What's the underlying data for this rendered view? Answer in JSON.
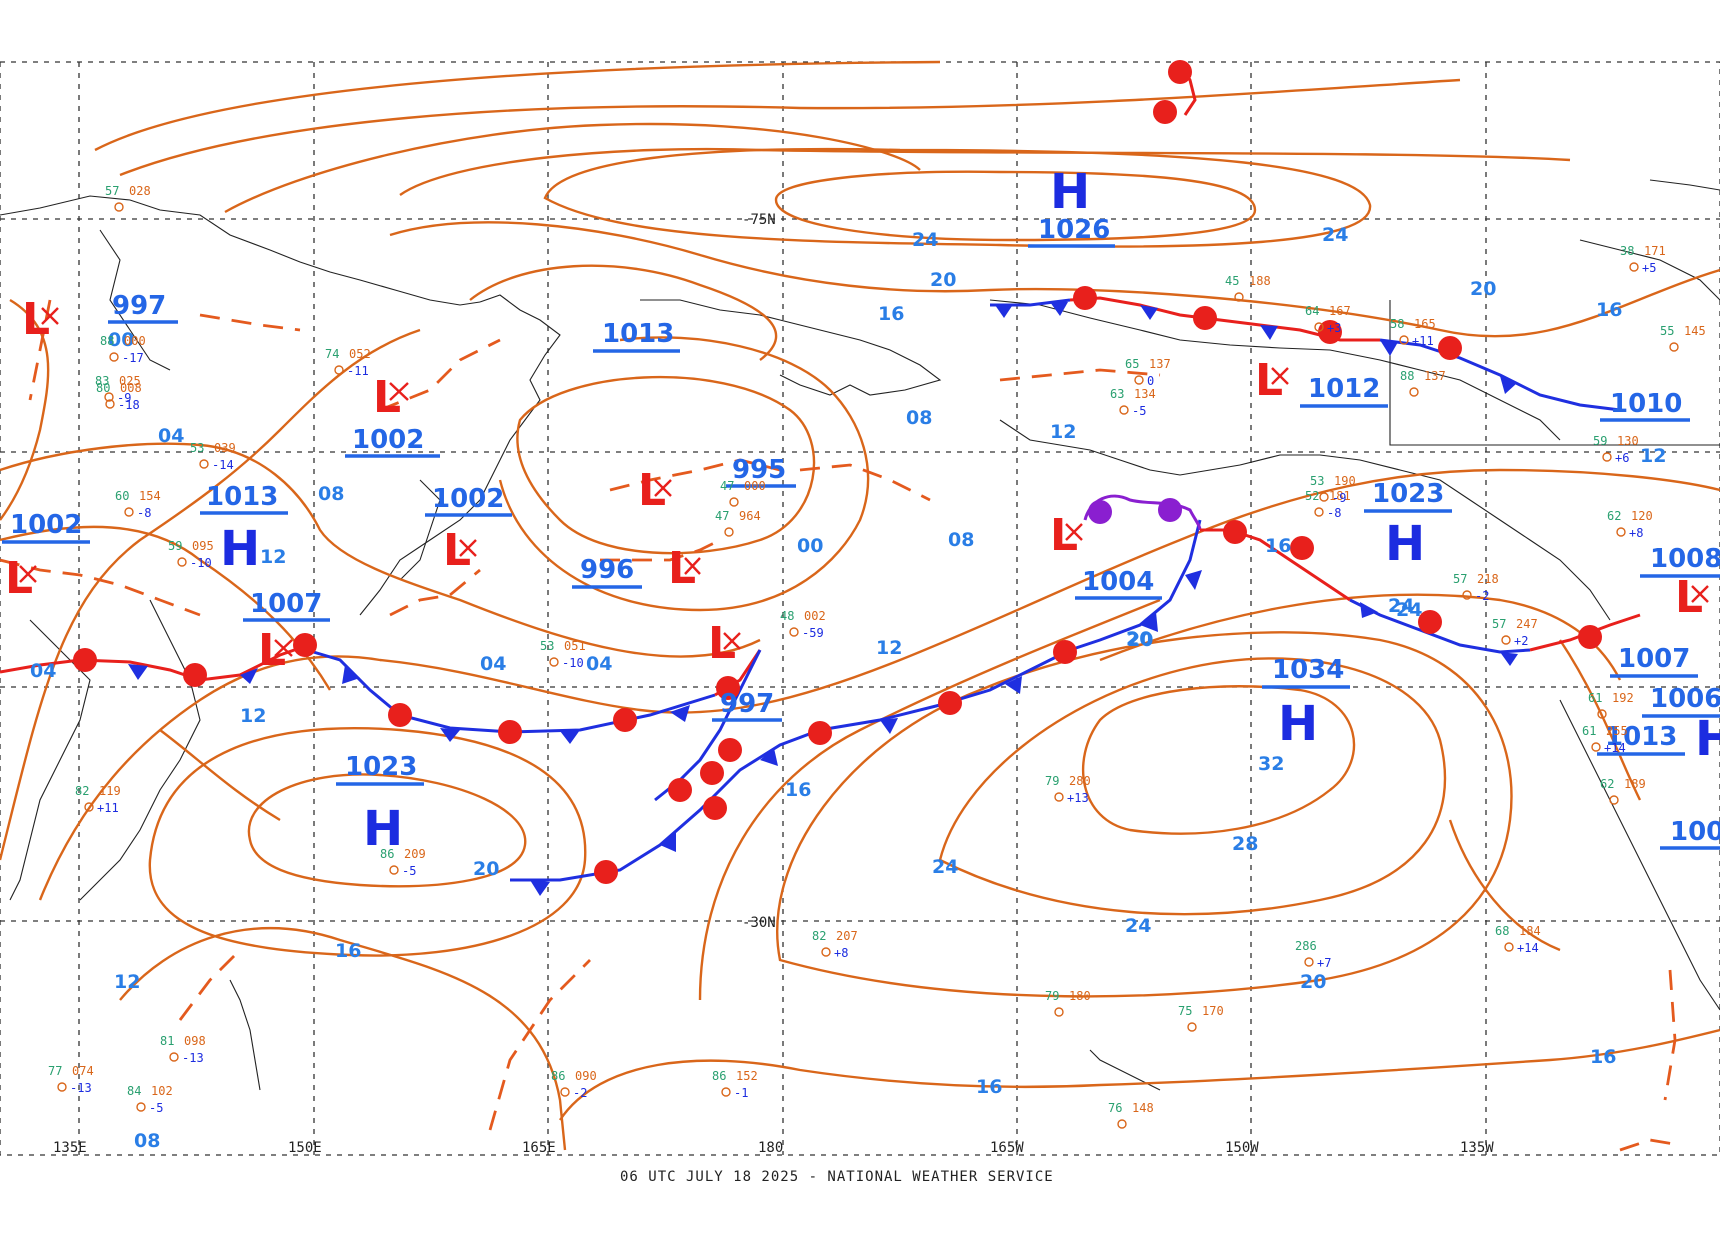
{
  "footer": "06 UTC JULY 18 2025 - NATIONAL WEATHER SERVICE",
  "lon_labels": [
    "135E",
    "150E",
    "165E",
    "180",
    "165W",
    "150W",
    "135W"
  ],
  "lat_labels": [
    "75N",
    "30N"
  ],
  "lat_labels_prefix": "-",
  "isobar_labels": [
    "24",
    "20",
    "16",
    "24",
    "20",
    "16",
    "12",
    "08",
    "04",
    "00",
    "08",
    "04",
    "00",
    "12",
    "08",
    "16",
    "12",
    "16",
    "20",
    "24",
    "28",
    "32",
    "20",
    "24",
    "16",
    "20",
    "24",
    "16",
    "12",
    "08",
    "04",
    "04",
    "12",
    "20",
    "16",
    "12",
    "24"
  ],
  "pressure_systems": [
    {
      "type": "L",
      "value": "997"
    },
    {
      "type": "L",
      "value": "1002"
    },
    {
      "type": "H",
      "value": "1013"
    },
    {
      "type": "L",
      "value": "1007"
    },
    {
      "type": "L",
      "value": "1002"
    },
    {
      "type": "L",
      "value": "1013"
    },
    {
      "type": "L",
      "value": "995"
    },
    {
      "type": "L",
      "value": "996"
    },
    {
      "type": "L",
      "value": "997"
    },
    {
      "type": "H",
      "value": "1023"
    },
    {
      "type": "H",
      "value": "1026"
    },
    {
      "type": "L",
      "value": "1012"
    },
    {
      "type": "L",
      "value": "1004"
    },
    {
      "type": "H",
      "value": "1023"
    },
    {
      "type": "H",
      "value": "1034"
    },
    {
      "type": "L",
      "value": "1010"
    },
    {
      "type": "L",
      "value": "1008"
    },
    {
      "type": "L",
      "value": "1007"
    },
    {
      "type": "H",
      "value": "1006"
    },
    {
      "type": "H",
      "value": "1013"
    },
    {
      "type": "L",
      "value": "1002"
    },
    {
      "type": "L",
      "value": "100"
    }
  ],
  "station_samples": [
    {
      "t": "57",
      "p": "028"
    },
    {
      "t": "88",
      "p": "000",
      "c": "-17"
    },
    {
      "t": "74",
      "p": "052",
      "c": "-11"
    },
    {
      "t": "83",
      "p": "025",
      "c": "-9"
    },
    {
      "t": "80",
      "p": "008",
      "c": "-18"
    },
    {
      "t": "60",
      "p": "154",
      "c": "-8"
    },
    {
      "t": "47",
      "p": "000"
    },
    {
      "t": "47",
      "p": "964"
    },
    {
      "t": "45",
      "p": "188"
    },
    {
      "t": "64",
      "p": "167",
      "c": "+3"
    },
    {
      "t": "58",
      "p": "165",
      "c": "+11"
    },
    {
      "t": "88",
      "p": "137"
    },
    {
      "t": "38",
      "p": "171",
      "c": "+5"
    },
    {
      "t": "79",
      "p": "280",
      "c": "+13"
    },
    {
      "t": "86",
      "p": "209",
      "c": "-5"
    },
    {
      "t": "82",
      "p": "207",
      "c": "+8"
    },
    {
      "t": "79",
      "p": "180"
    },
    {
      "t": "75",
      "p": "170"
    },
    {
      "t": "86",
      "p": "090",
      "c": "-2"
    },
    {
      "t": "86",
      "p": "152",
      "c": "-1"
    },
    {
      "t": "76",
      "p": "148"
    },
    {
      "t": "68",
      "p": "184",
      "c": "+14"
    },
    {
      "t": "62",
      "p": "189"
    },
    {
      "t": "61",
      "p": "192"
    },
    {
      "t": "61",
      "p": "255",
      "c": "+14"
    },
    {
      "t": "57",
      "p": "218",
      "c": "-2"
    },
    {
      "t": "57",
      "p": "247",
      "c": "+2"
    },
    {
      "t": "286",
      "p": "",
      "c": "+7"
    },
    {
      "t": "53",
      "p": "051",
      "c": "-10"
    },
    {
      "t": "77",
      "p": "074",
      "c": "-13"
    },
    {
      "t": "81",
      "p": "098",
      "c": "-13"
    },
    {
      "t": "84",
      "p": "102",
      "c": "-5"
    },
    {
      "t": "53",
      "p": "039",
      "c": "-14"
    },
    {
      "t": "59",
      "p": "095",
      "c": "-10"
    },
    {
      "t": "82",
      "p": "119",
      "c": "+11"
    },
    {
      "t": "48",
      "p": "002",
      "c": "-59"
    },
    {
      "t": "52",
      "p": "181",
      "c": "-8"
    },
    {
      "t": "53",
      "p": "190",
      "c": "-9"
    },
    {
      "t": "65",
      "p": "137",
      "c": "0"
    },
    {
      "t": "63",
      "p": "134",
      "c": "-5"
    },
    {
      "t": "59",
      "p": "130",
      "c": "+6"
    },
    {
      "t": "62",
      "p": "120",
      "c": "+8"
    },
    {
      "t": "55",
      "p": "145"
    }
  ],
  "colors": {
    "isobar": "#d9661a",
    "cold_front": "#1f2fe0",
    "warm_front": "#e8201c",
    "occluded": "#8a1fd0",
    "label": "#2a7ee6",
    "high": "#1c2ce0",
    "low": "#e8201c"
  }
}
